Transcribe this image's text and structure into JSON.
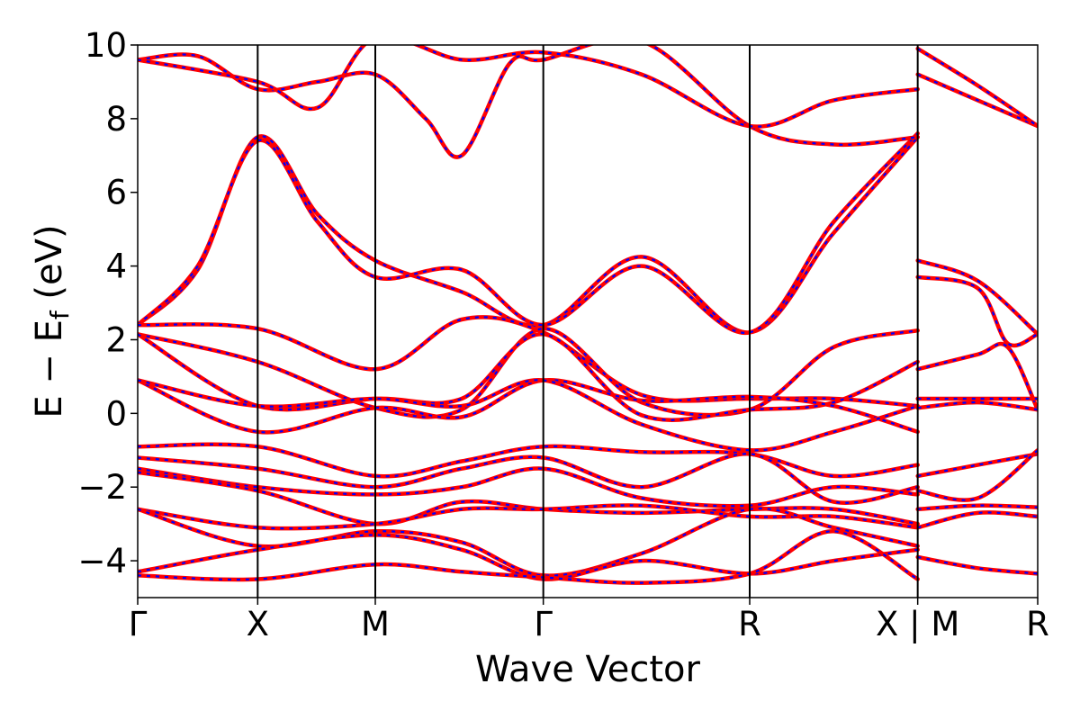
{
  "chart_data": {
    "type": "line",
    "xlabel": "Wave Vector",
    "ylabel": "E − E",
    "ylabel_sub": "f",
    "ylabel_unit": " (eV)",
    "ylim": [
      -5,
      10
    ],
    "y_ticks": [
      {
        "value": 10,
        "label": "10"
      },
      {
        "value": 8,
        "label": "8"
      },
      {
        "value": 6,
        "label": "6"
      },
      {
        "value": 4,
        "label": "4"
      },
      {
        "value": 2,
        "label": "2"
      },
      {
        "value": 0,
        "label": "0"
      },
      {
        "value": -2,
        "label": "−2"
      },
      {
        "value": -4,
        "label": "−4"
      }
    ],
    "k_points": [
      {
        "label": "Γ",
        "position": 0.0
      },
      {
        "label": "X",
        "position": 1.0
      },
      {
        "label": "M",
        "position": 1.98
      },
      {
        "label": "Γ",
        "position": 3.38
      },
      {
        "label": "R",
        "position": 5.1
      },
      {
        "label": "X | M",
        "position": 6.5
      },
      {
        "label": "R",
        "position": 7.5
      }
    ],
    "xlim": [
      0,
      7.5
    ],
    "grid": false,
    "line_styles": {
      "primary_color": "#ff0000",
      "overlay_color": "#0000ff",
      "overlay_style": "dashed"
    },
    "series": [
      {
        "values": [
          [
            0,
            2.4
          ],
          [
            0.5,
            3.9
          ],
          [
            1.0,
            7.5
          ],
          [
            1.5,
            5.4
          ],
          [
            1.98,
            4.15
          ],
          [
            2.7,
            3.3
          ],
          [
            3.38,
            2.4
          ],
          [
            4.2,
            4.25
          ],
          [
            5.1,
            2.2
          ],
          [
            5.8,
            4.9
          ],
          [
            6.5,
            7.5
          ]
        ]
      },
      {
        "values": [
          [
            0,
            2.4
          ],
          [
            0.5,
            4.0
          ],
          [
            1.0,
            7.4
          ],
          [
            1.5,
            5.2
          ],
          [
            1.98,
            3.7
          ],
          [
            2.7,
            3.9
          ],
          [
            3.38,
            2.4
          ],
          [
            4.2,
            4.0
          ],
          [
            5.1,
            2.2
          ],
          [
            5.8,
            5.2
          ],
          [
            6.5,
            7.6
          ]
        ]
      },
      {
        "values": [
          [
            0,
            2.4
          ],
          [
            1.0,
            2.3
          ],
          [
            1.98,
            1.2
          ],
          [
            2.7,
            2.55
          ],
          [
            3.38,
            2.2
          ],
          [
            4.2,
            0.5
          ],
          [
            5.1,
            0.4
          ],
          [
            5.8,
            0.4
          ],
          [
            6.5,
            0.2
          ]
        ]
      },
      {
        "values": [
          [
            0,
            2.15
          ],
          [
            1.0,
            1.4
          ],
          [
            1.98,
            0.15
          ],
          [
            2.7,
            0.1
          ],
          [
            3.38,
            2.3
          ],
          [
            4.2,
            0.3
          ],
          [
            5.1,
            0.1
          ],
          [
            5.8,
            1.8
          ],
          [
            6.5,
            2.25
          ]
        ]
      },
      {
        "values": [
          [
            0,
            2.15
          ],
          [
            1.0,
            0.2
          ],
          [
            1.98,
            0.4
          ],
          [
            2.7,
            0.4
          ],
          [
            3.38,
            2.15
          ],
          [
            4.2,
            -0.05
          ],
          [
            5.1,
            0.1
          ],
          [
            5.8,
            0.3
          ],
          [
            6.5,
            1.4
          ]
        ]
      },
      {
        "values": [
          [
            0,
            0.9
          ],
          [
            1.0,
            -0.5
          ],
          [
            1.98,
            0.15
          ],
          [
            2.7,
            -0.1
          ],
          [
            3.38,
            0.9
          ],
          [
            4.2,
            0.35
          ],
          [
            5.1,
            0.45
          ],
          [
            5.8,
            0.2
          ],
          [
            6.5,
            -0.5
          ]
        ]
      },
      {
        "values": [
          [
            0,
            0.9
          ],
          [
            1.0,
            0.2
          ],
          [
            1.98,
            0.4
          ],
          [
            2.7,
            0.2
          ],
          [
            3.38,
            0.9
          ],
          [
            4.2,
            -0.3
          ],
          [
            5.1,
            -1.0
          ],
          [
            5.8,
            -0.5
          ],
          [
            6.5,
            0.2
          ]
        ]
      },
      {
        "values": [
          [
            0,
            -0.9
          ],
          [
            1.0,
            -0.9
          ],
          [
            1.98,
            -1.7
          ],
          [
            2.7,
            -1.3
          ],
          [
            3.38,
            -0.9
          ],
          [
            4.2,
            -1.05
          ],
          [
            5.1,
            -1.1
          ],
          [
            5.8,
            -1.7
          ],
          [
            6.5,
            -1.4
          ]
        ]
      },
      {
        "values": [
          [
            0,
            -1.2
          ],
          [
            1.0,
            -1.5
          ],
          [
            1.98,
            -2.0
          ],
          [
            2.7,
            -1.5
          ],
          [
            3.38,
            -1.2
          ],
          [
            4.2,
            -2.0
          ],
          [
            5.1,
            -1.1
          ],
          [
            5.8,
            -2.4
          ],
          [
            6.5,
            -2.0
          ]
        ]
      },
      {
        "values": [
          [
            0,
            -1.5
          ],
          [
            1.0,
            -2.0
          ],
          [
            1.98,
            -2.2
          ],
          [
            2.7,
            -2.0
          ],
          [
            3.38,
            -1.5
          ],
          [
            4.2,
            -2.3
          ],
          [
            5.1,
            -2.5
          ],
          [
            5.8,
            -2.0
          ],
          [
            6.5,
            -2.2
          ]
        ]
      },
      {
        "values": [
          [
            0,
            -1.6
          ],
          [
            1.0,
            -2.1
          ],
          [
            1.98,
            -3.0
          ],
          [
            2.7,
            -2.4
          ],
          [
            3.38,
            -2.6
          ],
          [
            4.2,
            -2.7
          ],
          [
            5.1,
            -2.6
          ],
          [
            5.8,
            -2.6
          ],
          [
            6.5,
            -3.0
          ]
        ]
      },
      {
        "values": [
          [
            0,
            -2.6
          ],
          [
            1.0,
            -3.1
          ],
          [
            1.98,
            -3.0
          ],
          [
            2.7,
            -2.6
          ],
          [
            3.38,
            -2.6
          ],
          [
            4.2,
            -2.5
          ],
          [
            5.1,
            -2.8
          ],
          [
            5.8,
            -2.8
          ],
          [
            6.5,
            -3.1
          ]
        ]
      },
      {
        "values": [
          [
            0,
            -2.6
          ],
          [
            1.0,
            -3.6
          ],
          [
            1.98,
            -3.2
          ],
          [
            2.7,
            -3.5
          ],
          [
            3.38,
            -4.4
          ],
          [
            4.2,
            -3.8
          ],
          [
            5.1,
            -2.6
          ],
          [
            5.8,
            -3.1
          ],
          [
            6.5,
            -3.6
          ]
        ]
      },
      {
        "values": [
          [
            0,
            -4.3
          ],
          [
            1.0,
            -3.7
          ],
          [
            1.98,
            -3.3
          ],
          [
            2.7,
            -3.7
          ],
          [
            3.38,
            -4.5
          ],
          [
            4.2,
            -4.0
          ],
          [
            5.1,
            -4.35
          ],
          [
            5.8,
            -4.0
          ],
          [
            6.5,
            -3.7
          ]
        ]
      },
      {
        "values": [
          [
            0,
            -4.4
          ],
          [
            1.0,
            -4.5
          ],
          [
            1.98,
            -4.1
          ],
          [
            2.7,
            -4.3
          ],
          [
            3.38,
            -4.45
          ],
          [
            4.2,
            -4.6
          ],
          [
            5.1,
            -4.35
          ],
          [
            5.8,
            -3.2
          ],
          [
            6.5,
            -4.5
          ]
        ]
      },
      {
        "values": [
          [
            0,
            9.6
          ],
          [
            0.5,
            9.7
          ],
          [
            1.0,
            8.8
          ],
          [
            1.5,
            9.0
          ],
          [
            1.98,
            9.2
          ],
          [
            2.4,
            8.0
          ],
          [
            2.7,
            7.0
          ],
          [
            3.1,
            9.5
          ],
          [
            3.38,
            9.6
          ],
          [
            4.2,
            10.1
          ],
          [
            5.1,
            7.8
          ],
          [
            5.8,
            7.3
          ],
          [
            6.5,
            7.5
          ]
        ]
      },
      {
        "values": [
          [
            0,
            9.6
          ],
          [
            1.0,
            9.0
          ],
          [
            1.5,
            8.3
          ],
          [
            1.98,
            10.2
          ],
          [
            2.7,
            9.6
          ],
          [
            3.38,
            9.8
          ],
          [
            4.2,
            9.2
          ],
          [
            5.1,
            7.8
          ],
          [
            5.8,
            8.5
          ],
          [
            6.5,
            8.8
          ]
        ]
      },
      {
        "values": [
          [
            6.5,
            4.15
          ],
          [
            7.0,
            3.6
          ],
          [
            7.5,
            2.15
          ]
        ]
      },
      {
        "values": [
          [
            6.5,
            3.7
          ],
          [
            7.0,
            3.4
          ],
          [
            7.25,
            1.9
          ],
          [
            7.5,
            2.15
          ]
        ]
      },
      {
        "values": [
          [
            6.5,
            1.2
          ],
          [
            7.0,
            1.6
          ],
          [
            7.25,
            1.8
          ],
          [
            7.5,
            0.1
          ]
        ]
      },
      {
        "values": [
          [
            6.5,
            0.4
          ],
          [
            7.0,
            0.4
          ],
          [
            7.5,
            0.4
          ]
        ]
      },
      {
        "values": [
          [
            6.5,
            0.15
          ],
          [
            7.0,
            0.3
          ],
          [
            7.5,
            0.1
          ]
        ]
      },
      {
        "values": [
          [
            6.5,
            -1.7
          ],
          [
            7.0,
            -1.4
          ],
          [
            7.5,
            -1.1
          ]
        ]
      },
      {
        "values": [
          [
            6.5,
            -2.1
          ],
          [
            7.0,
            -2.3
          ],
          [
            7.5,
            -1.0
          ]
        ]
      },
      {
        "values": [
          [
            6.5,
            -2.6
          ],
          [
            7.0,
            -2.5
          ],
          [
            7.5,
            -2.55
          ]
        ]
      },
      {
        "values": [
          [
            6.5,
            -3.1
          ],
          [
            7.0,
            -2.7
          ],
          [
            7.5,
            -2.8
          ]
        ]
      },
      {
        "values": [
          [
            6.5,
            -3.9
          ],
          [
            7.0,
            -4.2
          ],
          [
            7.5,
            -4.35
          ]
        ]
      },
      {
        "values": [
          [
            6.5,
            9.2
          ],
          [
            7.0,
            8.5
          ],
          [
            7.5,
            7.8
          ]
        ]
      },
      {
        "values": [
          [
            6.5,
            9.9
          ],
          [
            7.0,
            8.9
          ],
          [
            7.5,
            7.8
          ]
        ]
      }
    ]
  }
}
